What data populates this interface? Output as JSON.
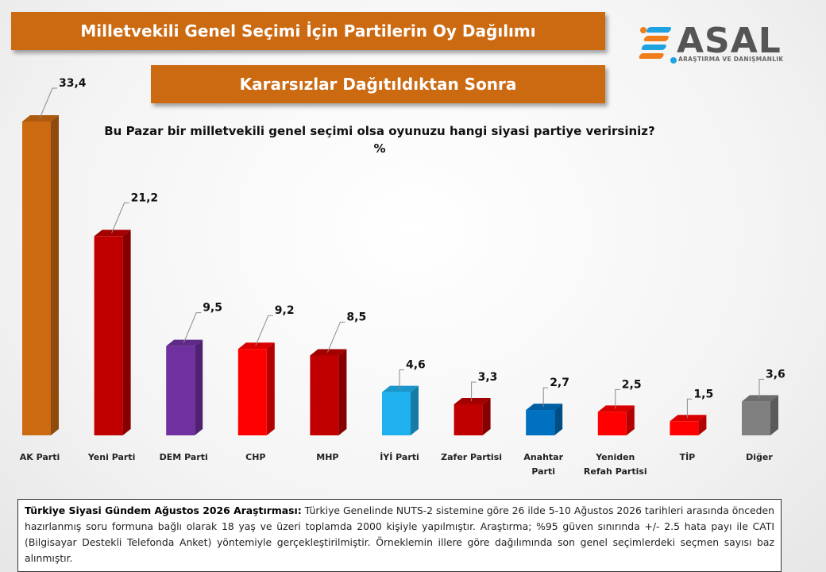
{
  "header": {
    "title": "Milletvekili Genel Seçimi İçin Partilerin Oy Dağılımı",
    "subtitle": "Kararsızlar Dağıtıldıktan Sonra"
  },
  "logo": {
    "name": "ASAL",
    "tagline": "ARAŞTIRMA VE DANIŞMANLIK"
  },
  "chart_data": {
    "type": "bar",
    "title": "Bu Pazar bir milletvekili genel seçimi olsa oyunuzu hangi siyasi partiye verirsiniz?",
    "unit": "%",
    "categories": [
      "AK Parti",
      "Yeni Parti",
      "DEM Parti",
      "CHP",
      "MHP",
      "İYİ Parti",
      "Zafer Partisi",
      "Anahtar Parti",
      "Yeniden Refah Partisi",
      "TİP",
      "Diğer"
    ],
    "category_lines": [
      [
        "AK Parti"
      ],
      [
        "Yeni Parti"
      ],
      [
        "DEM Parti"
      ],
      [
        "CHP"
      ],
      [
        "MHP"
      ],
      [
        "İYİ Parti"
      ],
      [
        "Zafer Partisi"
      ],
      [
        "Anahtar",
        "Parti"
      ],
      [
        "Yeniden",
        "Refah Partisi"
      ],
      [
        "TİP"
      ],
      [
        "Diğer"
      ]
    ],
    "values": [
      33.4,
      21.2,
      9.5,
      9.2,
      8.5,
      4.6,
      3.3,
      2.7,
      2.5,
      1.5,
      3.6
    ],
    "value_labels": [
      "33,4",
      "21,2",
      "9,5",
      "9,2",
      "8,5",
      "4,6",
      "3,3",
      "2,7",
      "2,5",
      "1,5",
      "3,6"
    ],
    "colors": [
      "#cc6a12",
      "#c00000",
      "#7030a0",
      "#ff0000",
      "#c00000",
      "#1fb1ef",
      "#c00000",
      "#0070c0",
      "#ff0000",
      "#ff0000",
      "#808080"
    ],
    "ylim": [
      0,
      33.4
    ],
    "grid": false,
    "legend": "none"
  },
  "footnote": {
    "bold": "Türkiye Siyasi Gündem Ağustos 2026 Araştırması:",
    "text": " Türkiye Genelinde NUTS-2 sistemine göre 26 ilde 5-10 Ağustos 2026 tarihleri arasında önceden hazırlanmış soru formuna bağlı olarak 18 yaş ve üzeri toplamda 2000 kişiyle yapılmıştır. Araştırma; %95 güven sınırında +/- 2.5 hata payı ile CATI (Bilgisayar Destekli Telefonda Anket) yöntemiyle gerçekleştirilmiştir. Örneklemin illere göre dağılımında son genel seçimlerdeki seçmen sayısı baz alınmıştır."
  }
}
